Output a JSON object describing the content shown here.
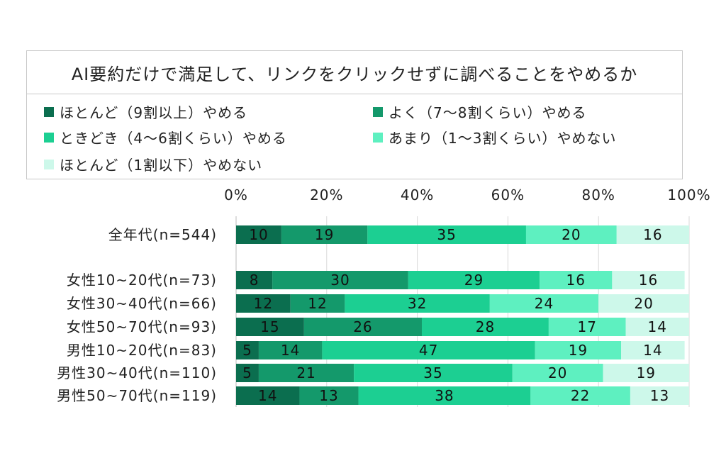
{
  "chart_data": {
    "type": "bar",
    "orientation": "horizontal-stacked-100",
    "title": "AI要約だけで満足して、リンクをクリックせずに調べることをやめるか",
    "categories": [
      "全年代(n=544)",
      "女性10~20代(n=73)",
      "女性30~40代(n=66)",
      "女性50~70代(n=93)",
      "男性10~20代(n=83)",
      "男性30~40代(n=110)",
      "男性50~70代(n=119)"
    ],
    "series": [
      {
        "name": "ほとんど（9割以上）やめる",
        "color": "#0b6e4f",
        "values": [
          10,
          8,
          12,
          15,
          5,
          5,
          14
        ]
      },
      {
        "name": "よく（7〜8割くらい）やめる",
        "color": "#14996b",
        "values": [
          19,
          30,
          12,
          26,
          14,
          21,
          13
        ]
      },
      {
        "name": "ときどき（4〜6割くらい）やめる",
        "color": "#1ccf92",
        "values": [
          35,
          29,
          32,
          28,
          47,
          35,
          38
        ]
      },
      {
        "name": "あまり（1〜3割くらい）やめない",
        "color": "#5ef0c0",
        "values": [
          20,
          16,
          24,
          17,
          19,
          20,
          22
        ]
      },
      {
        "name": "ほとんど（1割以下）やめない",
        "color": "#cdf8ea",
        "values": [
          16,
          16,
          20,
          14,
          14,
          19,
          13
        ]
      }
    ],
    "x_ticks": [
      "0%",
      "20%",
      "40%",
      "60%",
      "80%",
      "100%"
    ],
    "xlim": [
      0,
      100
    ],
    "grid": true,
    "legend_position": "top"
  }
}
